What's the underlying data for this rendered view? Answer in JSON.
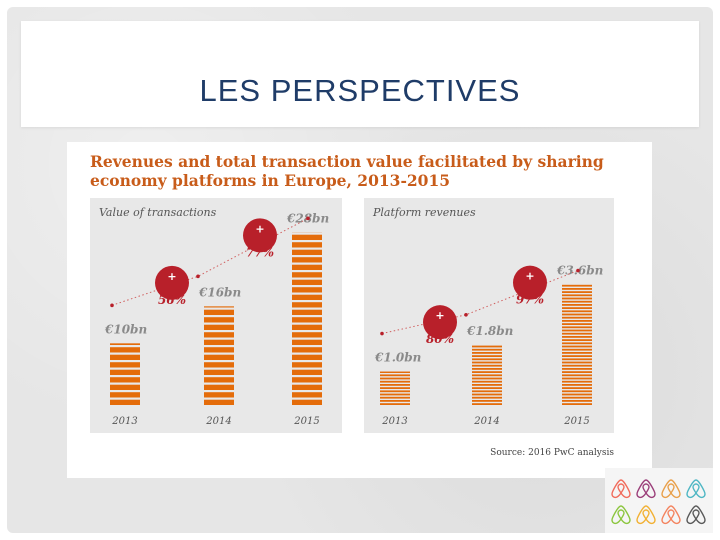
{
  "slide": {
    "title": "LES PERSPECTIVES"
  },
  "figure": {
    "title": "Revenues and total transaction value facilitated by sharing economy platforms in Europe, 2013-2015",
    "source": "Source: 2016 PwC analysis"
  },
  "colors": {
    "accent": "#e46c0a",
    "title_orange": "#c85c1a",
    "badge_red": "#b8202a",
    "slide_title": "#1f3c68"
  },
  "chart_data": [
    {
      "type": "bar",
      "title": "Value of transactions",
      "categories": [
        "2013",
        "2014",
        "2015"
      ],
      "values": [
        10,
        16,
        28
      ],
      "value_labels": [
        "€10bn",
        "€16bn",
        "€28bn"
      ],
      "trend_line": "dotted",
      "growth_badges": [
        {
          "between": [
            "2013",
            "2014"
          ],
          "label": "+ 56%"
        },
        {
          "between": [
            "2014",
            "2015"
          ],
          "label": "+ 77%"
        }
      ],
      "ylim": [
        0,
        30
      ],
      "bar_style": "striped"
    },
    {
      "type": "bar",
      "title": "Platform revenues",
      "categories": [
        "2013",
        "2014",
        "2015"
      ],
      "values": [
        1.0,
        1.8,
        3.6
      ],
      "value_labels": [
        "€1.0bn",
        "€1.8bn",
        "€3.6bn"
      ],
      "trend_line": "dotted",
      "growth_badges": [
        {
          "between": [
            "2013",
            "2014"
          ],
          "label": "+ 80%"
        },
        {
          "between": [
            "2014",
            "2015"
          ],
          "label": "+ 97%"
        }
      ],
      "ylim": [
        0,
        3.9
      ],
      "bar_style": "thin-striped"
    }
  ],
  "logos": {
    "icon": "airbnb-logo-icon",
    "count": 8,
    "colors": [
      "#f16c5c",
      "#9b3f7a",
      "#e9a04b",
      "#4fb7c4",
      "#8cc63f",
      "#f2b134",
      "#f4845f",
      "#5a5a5a"
    ]
  }
}
